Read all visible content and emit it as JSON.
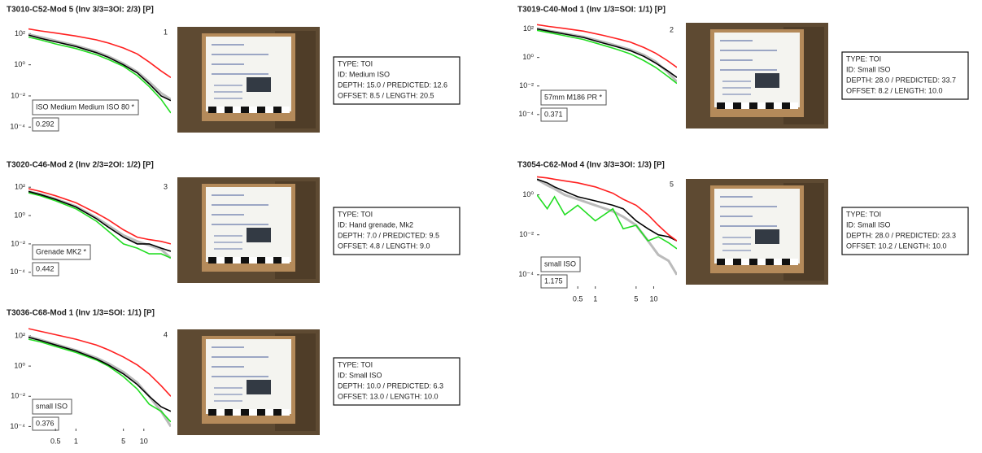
{
  "chart_data": [
    {
      "type": "line",
      "title": "T3010-C52-Mod 5 (Inv 3/3=3OI: 2/3) [P]",
      "panel_label": "1",
      "annotation": "ISO Medium Medium ISO 80 *",
      "score": 0.292,
      "info": [
        "TYPE: TOI",
        "ID: Medium ISO",
        "DEPTH: 15.0  /  PREDICTED: 12.6",
        "OFFSET: 8.5  /  LENGTH: 20.5"
      ],
      "xscale": "log",
      "yscale": "log",
      "xlim": [
        0.2,
        25
      ],
      "ylim": [
        5e-05,
        500
      ],
      "yticks": [
        {
          "value": 0.0001,
          "label": "10⁻⁴"
        },
        {
          "value": 0.01,
          "label": "10⁻²"
        },
        {
          "value": 1,
          "label": "10⁰"
        },
        {
          "value": 100,
          "label": "10²"
        }
      ],
      "x": [
        0.2,
        0.3,
        0.5,
        1,
        2,
        3,
        5,
        8,
        12,
        18,
        25
      ],
      "series": [
        {
          "color": "#bbbbbb",
          "values": [
            90,
            60,
            35,
            17,
            7,
            3.5,
            1.2,
            0.35,
            0.08,
            0.015,
            0.006
          ]
        },
        {
          "color": "#22dd22",
          "values": [
            60,
            40,
            22,
            11,
            4.5,
            2.2,
            0.8,
            0.2,
            0.04,
            0.006,
            0.0008
          ]
        },
        {
          "color": "#000000",
          "values": [
            80,
            50,
            30,
            15,
            6,
            3,
            1,
            0.3,
            0.06,
            0.01,
            0.005
          ]
        },
        {
          "color": "#ff2020",
          "values": [
            200,
            150,
            110,
            70,
            40,
            25,
            12,
            5,
            1.5,
            0.4,
            0.15
          ]
        }
      ]
    },
    {
      "type": "line",
      "title": "T3019-C40-Mod 1 (Inv 1/3=SOI: 1/1) [P]",
      "panel_label": "2",
      "annotation": "57mm M186 PR *",
      "score": 0.371,
      "info": [
        "TYPE: TOI",
        "ID: Small ISO",
        "DEPTH: 28.0  /  PREDICTED: 33.7",
        "OFFSET: 8.2  /  LENGTH: 10.0"
      ],
      "xscale": "log",
      "yscale": "log",
      "xlim": [
        0.2,
        25
      ],
      "ylim": [
        3e-05,
        400
      ],
      "yticks": [
        {
          "value": 0.0001,
          "label": "10⁻⁴"
        },
        {
          "value": 0.01,
          "label": "10⁻²"
        },
        {
          "value": 1,
          "label": "10⁰"
        },
        {
          "value": 100,
          "label": "10²"
        }
      ],
      "x": [
        0.2,
        0.3,
        0.5,
        1,
        2,
        3,
        5,
        8,
        12,
        18,
        25
      ],
      "series": [
        {
          "color": "#bbbbbb",
          "values": [
            110,
            75,
            50,
            28,
            12,
            7,
            3.5,
            1.5,
            0.5,
            0.1,
            0.02
          ]
        },
        {
          "color": "#22dd22",
          "values": [
            80,
            55,
            35,
            18,
            7,
            4,
            1.8,
            0.6,
            0.2,
            0.05,
            0.015
          ]
        },
        {
          "color": "#000000",
          "values": [
            100,
            70,
            45,
            25,
            10,
            6,
            3,
            1.2,
            0.4,
            0.12,
            0.04
          ]
        },
        {
          "color": "#ff2020",
          "values": [
            200,
            150,
            110,
            70,
            35,
            22,
            12,
            5,
            2,
            0.6,
            0.2
          ]
        }
      ]
    },
    {
      "type": "line",
      "title": "T3020-C46-Mod 2 (Inv 2/3=2OI: 1/2) [P]",
      "panel_label": "3",
      "annotation": "Grenade MK2 *",
      "score": 0.442,
      "info": [
        "TYPE: TOI",
        "ID: Hand grenade, Mk2",
        "DEPTH: 7.0  /  PREDICTED: 9.5",
        "OFFSET: 4.8  /  LENGTH: 9.0"
      ],
      "xscale": "log",
      "yscale": "log",
      "xlim": [
        0.2,
        25
      ],
      "ylim": [
        5e-05,
        500
      ],
      "yticks": [
        {
          "value": 0.0001,
          "label": "10⁻⁴"
        },
        {
          "value": 0.01,
          "label": "10⁻²"
        },
        {
          "value": 1,
          "label": "10⁰"
        },
        {
          "value": 100,
          "label": "10²"
        }
      ],
      "x": [
        0.2,
        0.3,
        0.5,
        1,
        2,
        3,
        5,
        8,
        12,
        18,
        25
      ],
      "series": [
        {
          "color": "#bbbbbb",
          "values": [
            50,
            32,
            15,
            4.5,
            0.7,
            0.2,
            0.04,
            0.015,
            0.008,
            0.004,
            0.001
          ]
        },
        {
          "color": "#22dd22",
          "values": [
            40,
            25,
            11,
            3,
            0.4,
            0.08,
            0.01,
            0.005,
            0.002,
            0.002,
            0.001
          ]
        },
        {
          "color": "#000000",
          "values": [
            50,
            30,
            14,
            4,
            0.6,
            0.15,
            0.03,
            0.01,
            0.01,
            0.005,
            0.003
          ]
        },
        {
          "color": "#ff2020",
          "values": [
            80,
            50,
            25,
            8,
            1.5,
            0.5,
            0.1,
            0.03,
            0.02,
            0.015,
            0.01
          ]
        }
      ]
    },
    {
      "type": "line",
      "title": "T3036-C68-Mod 1 (Inv 1/3=SOI: 1/1) [P]",
      "panel_label": "4",
      "annotation": "small ISO",
      "score": 0.376,
      "info": [
        "TYPE: TOI",
        "ID: Small ISO",
        "DEPTH: 10.0  /  PREDICTED: 6.3",
        "OFFSET: 13.0  /  LENGTH: 10.0"
      ],
      "xscale": "log",
      "yscale": "log",
      "xlim": [
        0.2,
        25
      ],
      "ylim": [
        5e-05,
        500
      ],
      "xticks": [
        0.5,
        1,
        5,
        10
      ],
      "yticks": [
        {
          "value": 0.0001,
          "label": "10⁻⁴"
        },
        {
          "value": 0.01,
          "label": "10⁻²"
        },
        {
          "value": 1,
          "label": "10⁰"
        },
        {
          "value": 100,
          "label": "10²"
        }
      ],
      "x": [
        0.2,
        0.3,
        0.5,
        1,
        2,
        3,
        5,
        8,
        12,
        18,
        25
      ],
      "series": [
        {
          "color": "#bbbbbb",
          "values": [
            90,
            55,
            28,
            11,
            3.5,
            1.5,
            0.4,
            0.08,
            0.01,
            0.001,
            0.0001
          ]
        },
        {
          "color": "#22dd22",
          "values": [
            60,
            40,
            20,
            8,
            2.5,
            1,
            0.2,
            0.03,
            0.003,
            0.001,
            0.0002
          ]
        },
        {
          "color": "#000000",
          "values": [
            80,
            50,
            25,
            10,
            3,
            1.2,
            0.3,
            0.06,
            0.01,
            0.002,
            0.001
          ]
        },
        {
          "color": "#ff2020",
          "values": [
            300,
            200,
            120,
            60,
            25,
            12,
            4,
            1.2,
            0.3,
            0.05,
            0.01
          ]
        }
      ]
    },
    {
      "type": "line",
      "title": "T3054-C62-Mod 4 (Inv 3/3=3OI: 1/3) [P]",
      "panel_label": "5",
      "annotation": "small ISO",
      "score": 1.175,
      "info": [
        "TYPE: TOI",
        "ID: Small ISO",
        "DEPTH: 28.0  /  PREDICTED: 23.3",
        "OFFSET: 10.2  /  LENGTH: 10.0"
      ],
      "xscale": "log",
      "yscale": "log",
      "xlim": [
        0.1,
        25
      ],
      "ylim": [
        2e-05,
        10
      ],
      "xticks": [
        0.5,
        1,
        5,
        10
      ],
      "yticks": [
        {
          "value": 0.0001,
          "label": "10⁻⁴"
        },
        {
          "value": 0.01,
          "label": "10⁻²"
        },
        {
          "value": 1,
          "label": "10⁰"
        }
      ],
      "x": [
        0.1,
        0.15,
        0.2,
        0.3,
        0.5,
        1,
        2,
        3,
        5,
        8,
        12,
        18,
        25
      ],
      "series": [
        {
          "color": "#bbbbbb",
          "values": [
            6,
            3,
            2,
            1,
            0.6,
            0.3,
            0.15,
            0.08,
            0.03,
            0.005,
            0.001,
            0.0005,
            0.0001
          ]
        },
        {
          "color": "#22dd22",
          "values": [
            1,
            0.2,
            0.8,
            0.1,
            0.3,
            0.05,
            0.2,
            0.02,
            0.03,
            0.005,
            0.008,
            0.004,
            0.002
          ]
        },
        {
          "color": "#000000",
          "values": [
            6,
            4,
            2.5,
            1.5,
            0.8,
            0.5,
            0.3,
            0.2,
            0.05,
            0.02,
            0.01,
            0.008,
            0.005
          ]
        },
        {
          "color": "#ff2020",
          "values": [
            8,
            7,
            6,
            5,
            4,
            2.5,
            1.2,
            0.6,
            0.3,
            0.1,
            0.03,
            0.01,
            0.005
          ]
        }
      ]
    }
  ]
}
